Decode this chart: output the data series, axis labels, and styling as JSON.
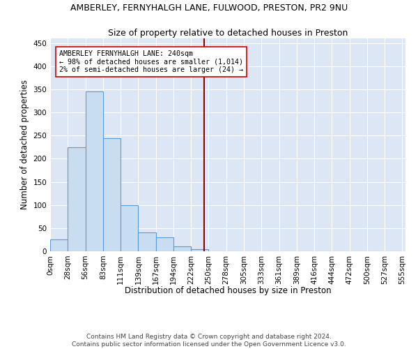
{
  "title": "AMBERLEY, FERNYHALGH LANE, FULWOOD, PRESTON, PR2 9NU",
  "subtitle": "Size of property relative to detached houses in Preston",
  "xlabel": "Distribution of detached houses by size in Preston",
  "ylabel": "Number of detached properties",
  "bar_color": "#c9ddf0",
  "bar_edge_color": "#5b9bd5",
  "background_color": "#dce6f5",
  "grid_color": "#ffffff",
  "vline_color": "#8b0000",
  "vline_x": 240,
  "annotation_line1": "AMBERLEY FERNYHALGH LANE: 240sqm",
  "annotation_line2": "← 98% of detached houses are smaller (1,014)",
  "annotation_line3": "2% of semi-detached houses are larger (24) →",
  "bin_edges": [
    0,
    27.5,
    55,
    82.5,
    110,
    137.5,
    165,
    192.5,
    220,
    247.5,
    275,
    302.5,
    330,
    357.5,
    385,
    412.5,
    440,
    467.5,
    495,
    522.5,
    550
  ],
  "bin_counts": [
    25,
    225,
    345,
    245,
    100,
    40,
    30,
    10,
    5,
    0,
    0,
    0,
    0,
    0,
    0,
    0,
    0,
    0,
    0,
    0
  ],
  "ylim": [
    0,
    460
  ],
  "xlim": [
    0,
    555
  ],
  "yticks": [
    0,
    50,
    100,
    150,
    200,
    250,
    300,
    350,
    400,
    450
  ],
  "xtick_labels": [
    "0sqm",
    "28sqm",
    "56sqm",
    "83sqm",
    "111sqm",
    "139sqm",
    "167sqm",
    "194sqm",
    "222sqm",
    "250sqm",
    "278sqm",
    "305sqm",
    "333sqm",
    "361sqm",
    "389sqm",
    "416sqm",
    "444sqm",
    "472sqm",
    "500sqm",
    "527sqm",
    "555sqm"
  ],
  "footer_lines": [
    "Contains HM Land Registry data © Crown copyright and database right 2024.",
    "Contains public sector information licensed under the Open Government Licence v3.0."
  ],
  "title_fontsize": 9,
  "subtitle_fontsize": 9,
  "xlabel_fontsize": 8.5,
  "ylabel_fontsize": 8.5,
  "tick_fontsize": 7.5,
  "footer_fontsize": 6.5
}
